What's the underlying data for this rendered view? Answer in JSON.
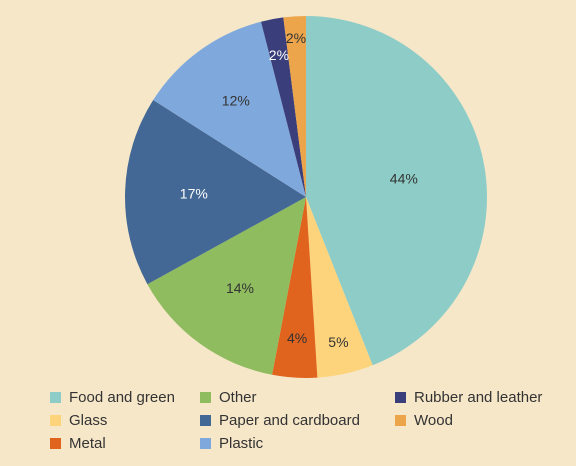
{
  "chart_data": {
    "type": "pie",
    "title": "",
    "unit": "%",
    "slices": [
      {
        "label": "Food and green",
        "value": 44,
        "display": "44%",
        "color": "#8ecdc7",
        "label_color": "#333333"
      },
      {
        "label": "Glass",
        "value": 5,
        "display": "5%",
        "color": "#fdd47c",
        "label_color": "#333333"
      },
      {
        "label": "Metal",
        "value": 4,
        "display": "4%",
        "color": "#e0631e",
        "label_color": "#333333"
      },
      {
        "label": "Other",
        "value": 14,
        "display": "14%",
        "color": "#8fbc5f",
        "label_color": "#333333"
      },
      {
        "label": "Paper and cardboard",
        "value": 17,
        "display": "17%",
        "color": "#436895",
        "label_color": "#ffffff"
      },
      {
        "label": "Plastic",
        "value": 12,
        "display": "12%",
        "color": "#7fa9dc",
        "label_color": "#333333"
      },
      {
        "label": "Rubber and leather",
        "value": 2,
        "display": "2%",
        "color": "#3a3f7c",
        "label_color": "#ffffff"
      },
      {
        "label": "Wood",
        "value": 2,
        "display": "2%",
        "color": "#eca54a",
        "label_color": "#333333"
      }
    ],
    "legend": {
      "placement": "bottom",
      "columns": [
        [
          "Food and green",
          "Glass",
          "Metal"
        ],
        [
          "Other",
          "Paper and cardboard",
          "Plastic"
        ],
        [
          "Rubber and leather",
          "Wood"
        ]
      ]
    }
  }
}
